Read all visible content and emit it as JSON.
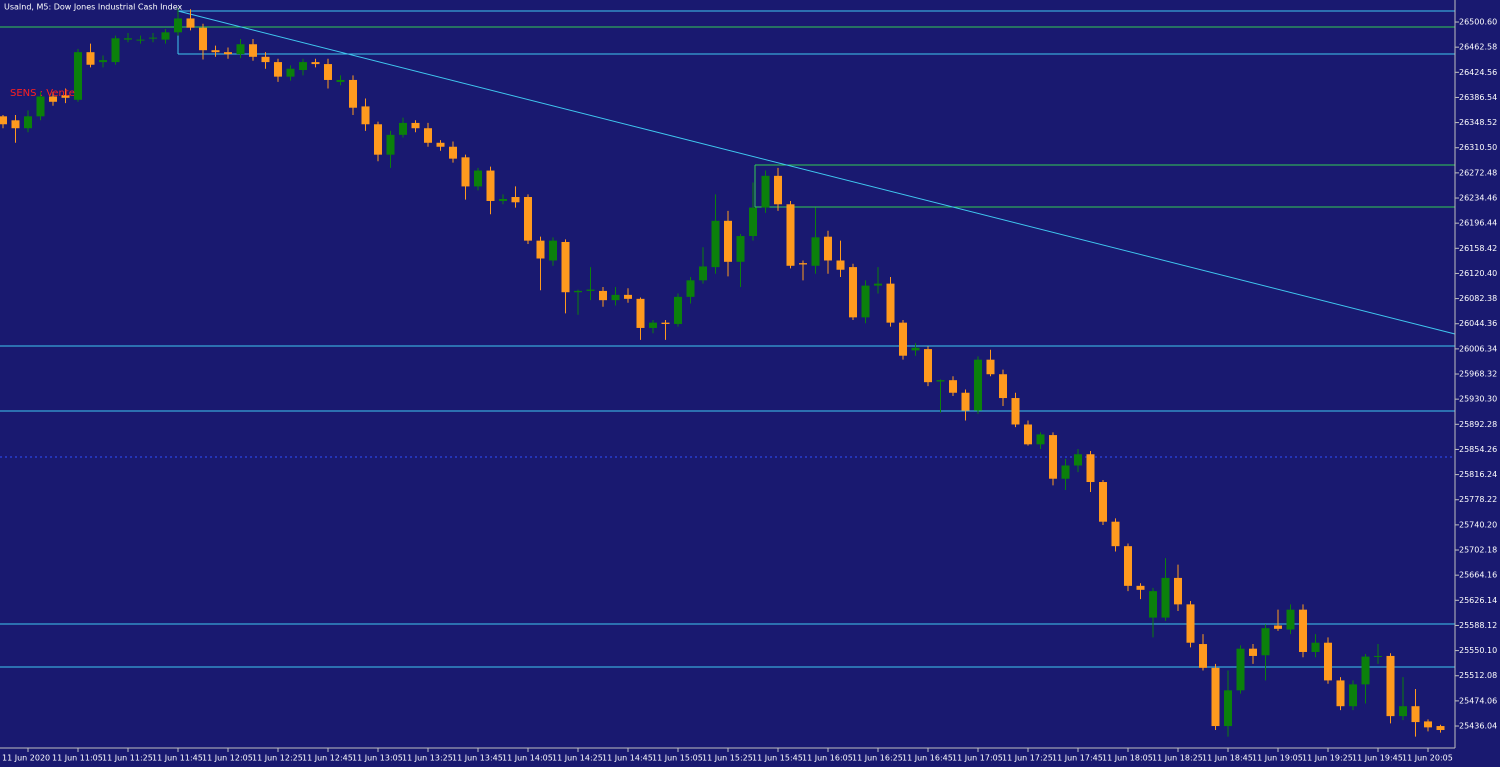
{
  "chart_data": {
    "type": "candlestick",
    "title": "UsaInd, M5:  Dow Jones Industrial Cash Index",
    "annotation": "SENS : Vente",
    "up_color": "#0b800b",
    "down_color": "#ff9a1e",
    "categories": [
      null,
      null,
      "11 Jun 2020",
      null,
      null,
      null,
      "11 Jun 11:05",
      null,
      null,
      null,
      "11 Jun 11:25",
      null,
      null,
      null,
      "11 Jun 11:45",
      null,
      null,
      null,
      "11 Jun 12:05",
      null,
      null,
      null,
      "11 Jun 12:25",
      null,
      null,
      null,
      "11 Jun 12:45",
      null,
      null,
      null,
      "11 Jun 13:05",
      null,
      null,
      null,
      "11 Jun 13:25",
      null,
      null,
      null,
      "11 Jun 13:45",
      null,
      null,
      null,
      "11 Jun 14:05",
      null,
      null,
      null,
      "11 Jun 14:25",
      null,
      null,
      null,
      "11 Jun 14:45",
      null,
      null,
      null,
      "11 Jun 15:05",
      null,
      null,
      null,
      "11 Jun 15:25",
      null,
      null,
      null,
      "11 Jun 15:45",
      null,
      null,
      null,
      "11 Jun 16:05",
      null,
      null,
      null,
      "11 Jun 16:25",
      null,
      null,
      null,
      "11 Jun 16:45",
      null,
      null,
      null,
      "11 Jun 17:05",
      null,
      null,
      null,
      "11 Jun 17:25",
      null,
      null,
      null,
      "11 Jun 17:45",
      null,
      null,
      null,
      "11 Jun 18:05",
      null,
      null,
      null,
      "11 Jun 18:25",
      null,
      null,
      null,
      "11 Jun 18:45",
      null,
      null,
      null,
      "11 Jun 19:05",
      null,
      null,
      null,
      "11 Jun 19:25",
      null,
      null,
      null,
      "11 Jun 19:45",
      null,
      null,
      null,
      "11 Jun 20:05",
      null
    ],
    "open": [
      26358,
      26352,
      26340,
      26358,
      26388,
      26390,
      26383,
      26455,
      26440,
      26440,
      26474,
      26474,
      26476,
      26474,
      26485,
      26506,
      26492,
      26458,
      26455,
      26452,
      26467,
      26448,
      26440,
      26418,
      26428,
      26440,
      26437,
      26410,
      26413,
      26373,
      26346,
      26300,
      26330,
      26348,
      26340,
      26318,
      26312,
      26296,
      26252,
      26276,
      26230,
      26236,
      26236,
      26170,
      26140,
      26168,
      26092,
      26094,
      26094,
      26080,
      26088,
      26082,
      26038,
      26046,
      26044,
      26085,
      26110,
      26130,
      26200,
      26138,
      26177,
      26220,
      26268,
      26225,
      26136,
      26132,
      26176,
      26140,
      26130,
      26054,
      26102,
      26105,
      26046,
      26004,
      26006,
      25957,
      25959,
      25940,
      25913,
      25990,
      25968,
      25932,
      25892,
      25862,
      25876,
      25810,
      25830,
      25847,
      25805,
      25745,
      25708,
      25648,
      25600,
      25600,
      25660,
      25620,
      25560,
      25524,
      25436,
      25490,
      25553,
      25543,
      25588,
      25582,
      25612,
      25548,
      25562,
      25505,
      25466,
      25499,
      25541,
      25542,
      25451,
      25466,
      25443,
      25436
    ],
    "high": [
      26360,
      26360,
      26367,
      26395,
      26395,
      26400,
      26460,
      26468,
      26450,
      26480,
      26484,
      26480,
      26484,
      26490,
      26522,
      26520,
      26498,
      26465,
      26462,
      26475,
      26475,
      26455,
      26445,
      26435,
      26445,
      26445,
      26445,
      26420,
      26420,
      26385,
      26350,
      26336,
      26356,
      26352,
      26348,
      26322,
      26320,
      26300,
      26280,
      26282,
      26240,
      26252,
      26240,
      26176,
      26175,
      26172,
      26096,
      26130,
      26100,
      26100,
      26098,
      26084,
      26050,
      26050,
      26090,
      26115,
      26160,
      26240,
      26215,
      26180,
      26258,
      26276,
      26280,
      26230,
      26140,
      26220,
      26185,
      26170,
      26135,
      26110,
      26130,
      26115,
      26050,
      26015,
      26010,
      25960,
      25965,
      25945,
      25995,
      26005,
      25975,
      25940,
      25898,
      25880,
      25880,
      25840,
      25855,
      25852,
      25808,
      25750,
      25712,
      25652,
      25645,
      25690,
      25680,
      25625,
      25575,
      25530,
      25520,
      25558,
      25560,
      25590,
      25612,
      25620,
      25620,
      25575,
      25570,
      25510,
      25505,
      25545,
      25560,
      25546,
      25510,
      25492,
      25446,
      25438
    ],
    "low": [
      26340,
      26318,
      26334,
      26352,
      26374,
      26378,
      26380,
      26432,
      26432,
      26436,
      26470,
      26468,
      26470,
      26468,
      26480,
      26488,
      26444,
      26448,
      26445,
      26446,
      26442,
      26430,
      26410,
      26412,
      26420,
      26432,
      26400,
      26405,
      26360,
      26336,
      26290,
      26280,
      26326,
      26334,
      26312,
      26306,
      26288,
      26232,
      26246,
      26210,
      26225,
      26220,
      26165,
      26095,
      26132,
      26060,
      26058,
      26080,
      26070,
      26072,
      26076,
      26020,
      26030,
      26020,
      26040,
      26075,
      26105,
      26120,
      26116,
      26100,
      26170,
      26212,
      26215,
      26128,
      26110,
      26120,
      26120,
      26115,
      26050,
      26045,
      26090,
      26040,
      25990,
      25996,
      25950,
      25910,
      25935,
      25898,
      25908,
      25965,
      25920,
      25888,
      25860,
      25855,
      25800,
      25793,
      25820,
      25790,
      25740,
      25700,
      25640,
      25628,
      25570,
      25595,
      25610,
      25555,
      25520,
      25430,
      25420,
      25485,
      25530,
      25505,
      25580,
      25575,
      25540,
      25540,
      25500,
      25460,
      25460,
      25470,
      25530,
      25440,
      25445,
      25420,
      25428,
      25426
    ],
    "close": [
      26346,
      26340,
      26358,
      26388,
      26380,
      26386,
      26455,
      26436,
      26443,
      26476,
      26476,
      26474,
      26477,
      26485,
      26506,
      26492,
      26458,
      26455,
      26452,
      26467,
      26448,
      26440,
      26418,
      26430,
      26440,
      26437,
      26413,
      26413,
      26371,
      26346,
      26300,
      26330,
      26348,
      26340,
      26318,
      26312,
      26294,
      26252,
      26276,
      26230,
      26233,
      26228,
      26170,
      26143,
      26170,
      26092,
      26094,
      26096,
      26080,
      26088,
      26082,
      26038,
      26046,
      26044,
      26085,
      26110,
      26131,
      26200,
      26138,
      26177,
      26220,
      26268,
      26225,
      26132,
      26134,
      26175,
      26140,
      26126,
      26054,
      26102,
      26105,
      26046,
      25996,
      26008,
      25956,
      25959,
      25940,
      25913,
      25990,
      25968,
      25932,
      25892,
      25862,
      25877,
      25810,
      25830,
      25847,
      25805,
      25745,
      25708,
      25648,
      25642,
      25640,
      25660,
      25620,
      25562,
      25524,
      25436,
      25490,
      25553,
      25542,
      25584,
      25583,
      25612,
      25548,
      25562,
      25505,
      25466,
      25499,
      25541,
      25542,
      25451,
      25466,
      25442,
      25434,
      25430
    ],
    "ylim": [
      25402.8,
      26533.9
    ],
    "yticks": [
      {
        "value": 26500.6,
        "label": "26500.60"
      },
      26462.58,
      26424.56,
      26386.54,
      26348.52,
      {
        "value": 26310.5,
        "label": "26310.50"
      },
      26272.48,
      26234.46,
      26196.44,
      26158.42,
      {
        "value": 26120.4,
        "label": "26120.40"
      },
      26082.38,
      26044.36,
      26006.34,
      25968.32,
      {
        "value": 25930.3,
        "label": "25930.30"
      },
      25892.28,
      25854.26,
      25816.24,
      25778.22,
      {
        "value": 25740.2,
        "label": "25740.20"
      },
      25702.18,
      25664.16,
      25626.14,
      25588.12,
      {
        "value": 25550.1,
        "label": "25550.10"
      },
      25512.08,
      25474.06,
      25436.04
    ]
  }
}
